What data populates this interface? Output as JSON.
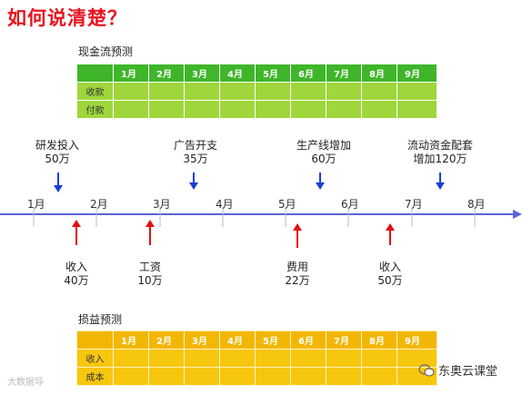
{
  "title": "如何说清楚？",
  "cashflow": {
    "label": "现金流预测",
    "months": [
      "1月",
      "2月",
      "3月",
      "4月",
      "5月",
      "6月",
      "7月",
      "8月",
      "9月"
    ],
    "rows": [
      "收款",
      "付款"
    ],
    "header_color": "#3fb52a",
    "row_color": "#9ed63c"
  },
  "timeline": {
    "months": [
      "1月",
      "2月",
      "3月",
      "4月",
      "5月",
      "6月",
      "7月",
      "8月"
    ],
    "line_color": "#5b63d6",
    "outflows": [
      {
        "name": "研发投入",
        "amount": "50万"
      },
      {
        "name": "广告开支",
        "amount": "35万"
      },
      {
        "name": "生产线增加",
        "amount": "60万"
      },
      {
        "name": "流动资金配套",
        "amount": "增加120万"
      }
    ],
    "inflows": [
      {
        "name": "收入",
        "amount": "40万"
      },
      {
        "name": "工资",
        "amount": "10万"
      },
      {
        "name": "费用",
        "amount": "22万"
      },
      {
        "name": "收入",
        "amount": "50万"
      }
    ],
    "down_arrow_color": "#1b3fd6",
    "up_arrow_color": "#e01010"
  },
  "profit": {
    "label": "损益预测",
    "months": [
      "1月",
      "2月",
      "3月",
      "4月",
      "5月",
      "6月",
      "7月",
      "8月",
      "9月"
    ],
    "rows": [
      "收入",
      "成本"
    ],
    "header_color": "#f2b705",
    "row_color": "#f7c60f"
  },
  "watermark": "大数据导",
  "brand": "东奥云课堂"
}
